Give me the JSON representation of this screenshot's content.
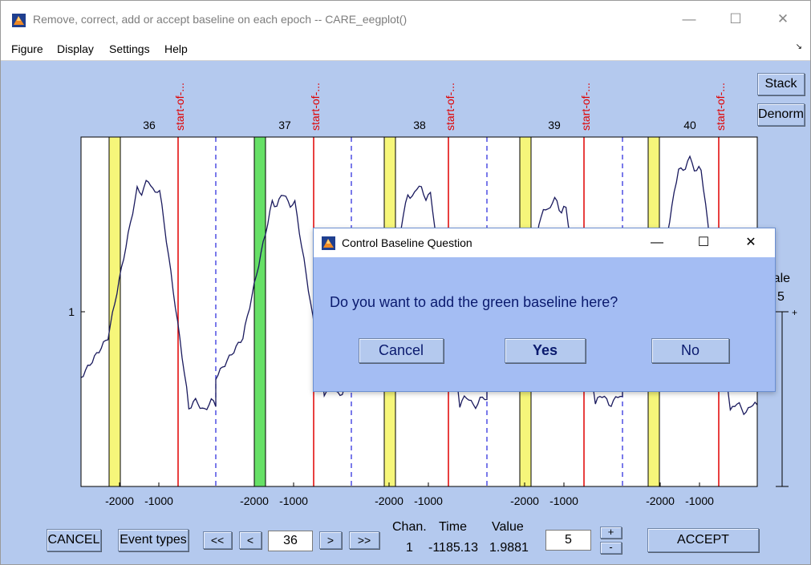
{
  "window": {
    "title": "Remove, correct, add or accept baseline on each epoch -- CARE_eegplot()",
    "controls": {
      "minimize": "—",
      "maximize": "☐",
      "close": "✕"
    }
  },
  "menu": {
    "items": [
      "Figure",
      "Display",
      "Settings",
      "Help"
    ],
    "corner_arrow": "↘"
  },
  "side_buttons": {
    "stack": "Stack",
    "denorm": "Denorm"
  },
  "plot": {
    "channel_label": "1",
    "epochs": [
      "36",
      "37",
      "38",
      "39",
      "40"
    ],
    "event_label": "start-of-...",
    "tick_labels": [
      "-2000",
      "-1000"
    ],
    "colors": {
      "trace": "#1a1a5e",
      "event": "#e00000",
      "boundary": "#2222dd",
      "baseline_yellow": "#f6f67a",
      "baseline_green": "#66e066",
      "axes_bg": "#ffffff"
    }
  },
  "scale": {
    "label": "Scale",
    "value": "5"
  },
  "bottom": {
    "cancel": "CANCEL",
    "event_types": "Event types",
    "nav_first": "<<",
    "nav_prev": "<",
    "epoch_value": "36",
    "nav_next": ">",
    "nav_last": ">>",
    "chan_header": "Chan.",
    "time_header": "Time",
    "value_header": "Value",
    "chan_value": "1",
    "time_value": "-1185.13",
    "value_value": "1.9881",
    "scale_value": "5",
    "plus": "+",
    "minus": "-",
    "accept": "ACCEPT"
  },
  "dialog": {
    "title": "Control Baseline Question",
    "question": "Do you want to add the green baseline here?",
    "buttons": {
      "cancel": "Cancel",
      "yes": "Yes",
      "no": "No"
    },
    "controls": {
      "minimize": "—",
      "maximize": "☐",
      "close": "✕"
    }
  }
}
